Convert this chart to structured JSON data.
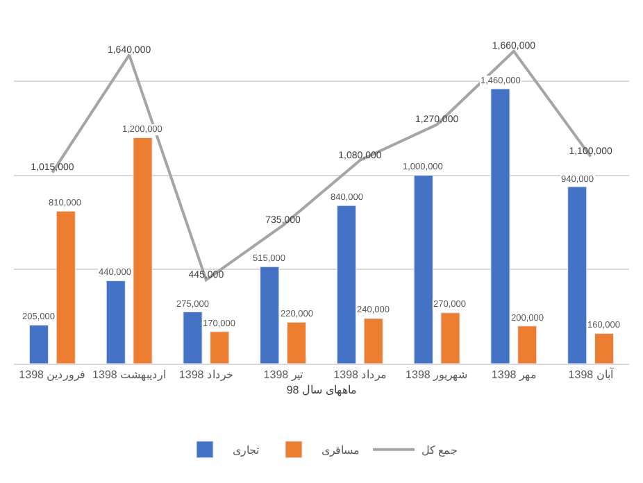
{
  "chart_data": {
    "type": "bar",
    "xlabel": "ماههای سال 98",
    "categories": [
      "فروردین 1398",
      "اردیبهشت 1398",
      "خرداد 1398",
      "تیر 1398",
      "مرداد 1398",
      "شهریور 1398",
      "مهر 1398",
      "آبان 1398"
    ],
    "series": [
      {
        "name": "تجاری",
        "color": "#4472c4",
        "values": [
          205000,
          440000,
          275000,
          515000,
          840000,
          1000000,
          1460000,
          940000
        ],
        "value_labels": [
          "205,000",
          "440,000",
          "275,000",
          "515,000",
          "840,000",
          "1,000,000",
          "1,460,000",
          "940,000"
        ]
      },
      {
        "name": "مسافری",
        "color": "#ed7d31",
        "values": [
          810000,
          1200000,
          170000,
          220000,
          240000,
          270000,
          200000,
          160000
        ],
        "value_labels": [
          "810,000",
          "1,200,000",
          "170,000",
          "220,000",
          "240,000",
          "270,000",
          "200,000",
          "160,000"
        ]
      },
      {
        "name": "جمع کل",
        "type": "line",
        "color": "#a5a5a5",
        "values": [
          1015000,
          1640000,
          445000,
          735000,
          1080000,
          1270000,
          1660000,
          1100000
        ],
        "value_labels": [
          "1,015,000",
          "1,640,000",
          "445,000",
          "735,000",
          "1,080,000",
          "1,270,000",
          "1,660,000",
          "1,100,000"
        ]
      }
    ],
    "tick_labels": "x",
    "grid": "y",
    "legend": "bottom",
    "marker": "none",
    "line_style": "solid"
  }
}
